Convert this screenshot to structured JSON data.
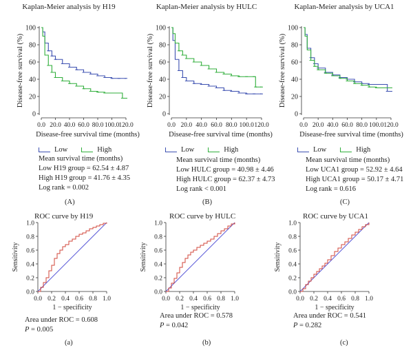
{
  "km": [
    {
      "title": "Kaplan-Meier analysis by H19",
      "tag": "(A)",
      "ylabel": "Disease-free survival (%)",
      "xlabel": "Disease-free survival time (months)",
      "yticks": [
        "100",
        "80",
        "60",
        "40",
        "20",
        "0"
      ],
      "xticks": [
        "0.0",
        "20.0",
        "40.0",
        "60.0",
        "80.0",
        "100.0",
        "120.0"
      ],
      "legend_low": "Low",
      "legend_high": "High",
      "stats_title": "Mean survival time (months)",
      "stats_low": "Low H19 group = 62.54 ± 4.87",
      "stats_high": "High H19 group = 41.76 ± 4.35",
      "log_rank": "Log rank = 0.002"
    },
    {
      "title": "Kaplan-Meier analysis by HULC",
      "tag": "(B)",
      "ylabel": "Disease-free survival (%)",
      "xlabel": "Disease-free survival time (months)",
      "yticks": [
        "100",
        "80",
        "60",
        "40",
        "20",
        "0"
      ],
      "xticks": [
        "0.0",
        "20.0",
        "40.0",
        "60.0",
        "80.0",
        "100.0",
        "120.0"
      ],
      "legend_low": "Low",
      "legend_high": "High",
      "stats_title": "Mean survival time (months)",
      "stats_low": "Low HULC group = 40.98 ± 4.46",
      "stats_high": "High HULC group = 62.37 ± 4.73",
      "log_rank": "Log rank < 0.001"
    },
    {
      "title": "Kaplan-Meier analysis by UCA1",
      "tag": "(C)",
      "ylabel": "Disease-free survival (%)",
      "xlabel": "Disease-free survival time (months)",
      "yticks": [
        "100",
        "80",
        "60",
        "40",
        "20",
        "0"
      ],
      "xticks": [
        "0.0",
        "20.0",
        "40.0",
        "60.0",
        "80.0",
        "100.0",
        "120.0"
      ],
      "legend_low": "Low",
      "legend_high": "High",
      "stats_title": "Mean survival time (months)",
      "stats_low": "Low UCA1 group = 52.92 ± 4.64",
      "stats_high": "High UCA1 group = 50.17 ± 4.71",
      "log_rank": "Log rank = 0.616"
    }
  ],
  "roc": [
    {
      "title": "ROC curve by H19",
      "tag": "(a)",
      "ylabel": "Sensitivity",
      "xlabel": "1 − specificity",
      "ticks": [
        "0.0",
        "0.2",
        "0.4",
        "0.6",
        "0.8",
        "1.0"
      ],
      "auc": "Area under ROC = 0.608",
      "p_label": "P",
      "p_value": " = 0.005"
    },
    {
      "title": "ROC curve by HULC",
      "tag": "(b)",
      "ylabel": "Sensitivity",
      "xlabel": "1 − specificity",
      "ticks": [
        "0.0",
        "0.2",
        "0.4",
        "0.6",
        "0.8",
        "1.0"
      ],
      "auc": "Area under ROC = 0.578",
      "p_label": "P",
      "p_value": " = 0.042"
    },
    {
      "title": "ROC curve by UCA1",
      "tag": "(c)",
      "ylabel": "Sensitivity",
      "xlabel": "1 − specificity",
      "ticks": [
        "0.0",
        "0.2",
        "0.4",
        "0.6",
        "0.8",
        "1.0"
      ],
      "auc": "Area under ROC = 0.541",
      "p_label": "P",
      "p_value": " = 0.282"
    }
  ],
  "colors": {
    "low": "#3b4fb0",
    "high": "#2fae3a",
    "roc": "#d0453a",
    "ref": "#5a5ad8",
    "axis": "#333333"
  },
  "chart_data": [
    {
      "type": "line",
      "title": "Kaplan-Meier analysis by H19",
      "xlabel": "Disease-free survival time (months)",
      "ylabel": "Disease-free survival (%)",
      "xlim": [
        0,
        120
      ],
      "ylim": [
        0,
        100
      ],
      "legend": "below",
      "series": [
        {
          "name": "Low",
          "x": [
            0,
            2,
            5,
            10,
            15,
            20,
            30,
            40,
            50,
            60,
            70,
            80,
            90,
            100,
            110,
            120
          ],
          "y": [
            100,
            95,
            82,
            73,
            67,
            63,
            58,
            54,
            51,
            48,
            46,
            44,
            42,
            41,
            41,
            41
          ]
        },
        {
          "name": "High",
          "x": [
            0,
            2,
            5,
            10,
            15,
            20,
            30,
            40,
            50,
            60,
            70,
            80,
            90,
            100,
            110,
            115,
            120
          ],
          "y": [
            100,
            90,
            68,
            56,
            48,
            42,
            38,
            35,
            32,
            29,
            26,
            25,
            24,
            24,
            24,
            18,
            18
          ]
        }
      ]
    },
    {
      "type": "line",
      "title": "Kaplan-Meier analysis by HULC",
      "xlabel": "Disease-free survival time (months)",
      "ylabel": "Disease-free survival (%)",
      "xlim": [
        0,
        120
      ],
      "ylim": [
        0,
        100
      ],
      "legend": "below",
      "series": [
        {
          "name": "Low",
          "x": [
            0,
            2,
            5,
            10,
            15,
            20,
            30,
            40,
            50,
            60,
            70,
            80,
            90,
            100,
            110,
            120
          ],
          "y": [
            100,
            85,
            63,
            50,
            42,
            38,
            35,
            34,
            32,
            30,
            27,
            26,
            24,
            23,
            23,
            23
          ]
        },
        {
          "name": "High",
          "x": [
            0,
            2,
            5,
            10,
            15,
            20,
            30,
            40,
            50,
            60,
            70,
            80,
            90,
            100,
            110,
            112,
            120
          ],
          "y": [
            100,
            93,
            82,
            73,
            68,
            64,
            60,
            56,
            52,
            48,
            46,
            44,
            43,
            43,
            43,
            31,
            31
          ]
        }
      ]
    },
    {
      "type": "line",
      "title": "Kaplan-Meier analysis by UCA1",
      "xlabel": "Disease-free survival time (months)",
      "ylabel": "Disease-free survival (%)",
      "xlim": [
        0,
        120
      ],
      "ylim": [
        0,
        100
      ],
      "legend": "below",
      "series": [
        {
          "name": "Low",
          "x": [
            0,
            2,
            5,
            10,
            15,
            20,
            30,
            40,
            50,
            60,
            70,
            80,
            90,
            100,
            110,
            115,
            120
          ],
          "y": [
            100,
            92,
            76,
            65,
            58,
            53,
            48,
            45,
            42,
            40,
            37,
            35,
            34,
            34,
            34,
            26,
            26
          ]
        },
        {
          "name": "High",
          "x": [
            0,
            2,
            5,
            10,
            15,
            20,
            30,
            40,
            50,
            60,
            70,
            80,
            90,
            100,
            110,
            120
          ],
          "y": [
            100,
            90,
            74,
            62,
            55,
            51,
            47,
            44,
            41,
            38,
            35,
            33,
            31,
            30,
            30,
            30
          ]
        }
      ]
    },
    {
      "type": "line",
      "title": "ROC curve by H19",
      "xlabel": "1 − specificity",
      "ylabel": "Sensitivity",
      "xlim": [
        0,
        1
      ],
      "ylim": [
        0,
        1
      ],
      "x": [
        0,
        0.04,
        0.08,
        0.12,
        0.16,
        0.2,
        0.24,
        0.28,
        0.32,
        0.36,
        0.4,
        0.45,
        0.5,
        0.55,
        0.6,
        0.65,
        0.7,
        0.75,
        0.8,
        0.85,
        0.9,
        0.95,
        1.0
      ],
      "y": [
        0,
        0.06,
        0.13,
        0.2,
        0.3,
        0.38,
        0.48,
        0.55,
        0.6,
        0.65,
        0.68,
        0.73,
        0.76,
        0.8,
        0.83,
        0.85,
        0.88,
        0.91,
        0.93,
        0.95,
        0.97,
        0.99,
        1.0
      ]
    },
    {
      "type": "line",
      "title": "ROC curve by HULC",
      "xlabel": "1 − specificity",
      "ylabel": "Sensitivity",
      "xlim": [
        0,
        1
      ],
      "ylim": [
        0,
        1
      ],
      "x": [
        0,
        0.04,
        0.08,
        0.12,
        0.16,
        0.2,
        0.24,
        0.28,
        0.32,
        0.36,
        0.4,
        0.45,
        0.5,
        0.55,
        0.6,
        0.65,
        0.7,
        0.75,
        0.8,
        0.85,
        0.9,
        0.95,
        1.0
      ],
      "y": [
        0,
        0.05,
        0.12,
        0.19,
        0.27,
        0.35,
        0.42,
        0.48,
        0.53,
        0.57,
        0.6,
        0.64,
        0.67,
        0.7,
        0.73,
        0.76,
        0.8,
        0.84,
        0.88,
        0.91,
        0.95,
        0.98,
        1.0
      ]
    },
    {
      "type": "line",
      "title": "ROC curve by UCA1",
      "xlabel": "1 − specificity",
      "ylabel": "Sensitivity",
      "xlim": [
        0,
        1
      ],
      "ylim": [
        0,
        1
      ],
      "x": [
        0,
        0.04,
        0.08,
        0.12,
        0.16,
        0.2,
        0.24,
        0.28,
        0.32,
        0.36,
        0.4,
        0.45,
        0.5,
        0.55,
        0.6,
        0.65,
        0.7,
        0.75,
        0.8,
        0.85,
        0.9,
        0.95,
        1.0
      ],
      "y": [
        0,
        0.04,
        0.1,
        0.15,
        0.2,
        0.25,
        0.29,
        0.33,
        0.37,
        0.41,
        0.46,
        0.52,
        0.58,
        0.63,
        0.68,
        0.72,
        0.77,
        0.82,
        0.86,
        0.9,
        0.94,
        0.97,
        1.0
      ]
    }
  ]
}
